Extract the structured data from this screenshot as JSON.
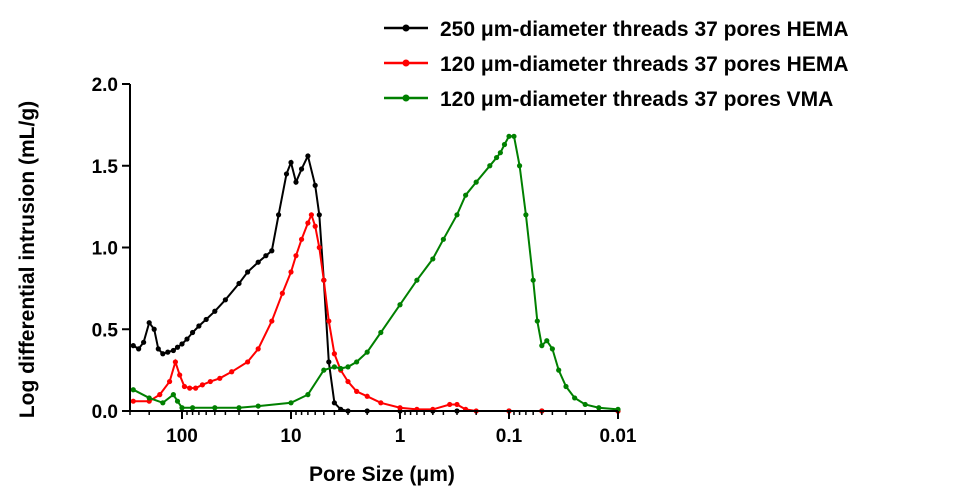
{
  "chart_data": {
    "type": "line",
    "xlabel": "Pore Size (μm)",
    "ylabel": "Log differential intrusion (mL/g)",
    "x_scale": "log",
    "x_reversed": true,
    "xlim": [
      300,
      0.01
    ],
    "ylim": [
      0,
      2.0
    ],
    "x_ticks": [
      100,
      10,
      1,
      0.1,
      0.01
    ],
    "x_tick_labels": [
      "100",
      "10",
      "1",
      "0.1",
      "0.01"
    ],
    "y_ticks": [
      0,
      0.5,
      1.0,
      1.5,
      2.0
    ],
    "y_tick_labels": [
      "0.0",
      "0.5",
      "1.0",
      "1.5",
      "2.0"
    ],
    "grid": false,
    "legend_position": "top-right",
    "series": [
      {
        "name": "250 μm-diameter threads 37 pores HEMA",
        "color": "#000000",
        "x": [
          280,
          250,
          225,
          200,
          180,
          165,
          150,
          135,
          120,
          110,
          100,
          90,
          80,
          70,
          60,
          50,
          40,
          30,
          25,
          20,
          17,
          15,
          13,
          11,
          10,
          9,
          8,
          7,
          6,
          5.5,
          5,
          4.5,
          4,
          3.5,
          3,
          2,
          1,
          0.5,
          0.3,
          0.1,
          0.05,
          0.01
        ],
        "values": [
          0.4,
          0.38,
          0.42,
          0.54,
          0.5,
          0.38,
          0.35,
          0.36,
          0.37,
          0.39,
          0.41,
          0.44,
          0.48,
          0.52,
          0.56,
          0.61,
          0.68,
          0.78,
          0.85,
          0.91,
          0.95,
          0.98,
          1.2,
          1.45,
          1.52,
          1.4,
          1.48,
          1.56,
          1.38,
          1.2,
          0.8,
          0.3,
          0.05,
          0.01,
          0.0,
          0.0,
          0.0,
          0.0,
          0.0,
          0.0,
          0.0,
          0.0
        ]
      },
      {
        "name": "120 μm-diameter threads 37 pores HEMA",
        "color": "#ff0000",
        "x": [
          280,
          200,
          160,
          130,
          115,
          105,
          95,
          85,
          75,
          65,
          55,
          45,
          35,
          25,
          20,
          15,
          12,
          10,
          9,
          8,
          7,
          6.5,
          6,
          5.5,
          5,
          4.5,
          4,
          3.5,
          3,
          2.5,
          2,
          1.5,
          1,
          0.7,
          0.5,
          0.35,
          0.3,
          0.25,
          0.2,
          0.1,
          0.05,
          0.01
        ],
        "values": [
          0.06,
          0.06,
          0.1,
          0.18,
          0.3,
          0.22,
          0.15,
          0.14,
          0.14,
          0.16,
          0.18,
          0.2,
          0.24,
          0.3,
          0.38,
          0.55,
          0.72,
          0.85,
          0.95,
          1.05,
          1.15,
          1.2,
          1.13,
          1.0,
          0.8,
          0.55,
          0.35,
          0.25,
          0.18,
          0.12,
          0.09,
          0.05,
          0.02,
          0.01,
          0.01,
          0.04,
          0.04,
          0.01,
          0.0,
          0.0,
          0.0,
          0.0
        ]
      },
      {
        "name": "120 μm-diameter threads 37 pores VMA",
        "color": "#008000",
        "x": [
          280,
          200,
          150,
          120,
          110,
          100,
          80,
          50,
          30,
          20,
          10,
          7,
          5,
          4,
          3.5,
          3,
          2.5,
          2,
          1.5,
          1,
          0.7,
          0.5,
          0.4,
          0.3,
          0.25,
          0.2,
          0.15,
          0.13,
          0.12,
          0.11,
          0.1,
          0.09,
          0.08,
          0.07,
          0.06,
          0.055,
          0.05,
          0.045,
          0.04,
          0.035,
          0.03,
          0.025,
          0.02,
          0.015,
          0.01
        ],
        "values": [
          0.13,
          0.08,
          0.05,
          0.1,
          0.06,
          0.02,
          0.02,
          0.02,
          0.02,
          0.03,
          0.05,
          0.1,
          0.25,
          0.27,
          0.26,
          0.27,
          0.3,
          0.36,
          0.48,
          0.65,
          0.8,
          0.93,
          1.05,
          1.2,
          1.32,
          1.4,
          1.5,
          1.55,
          1.58,
          1.63,
          1.68,
          1.68,
          1.5,
          1.2,
          0.8,
          0.55,
          0.4,
          0.43,
          0.38,
          0.25,
          0.15,
          0.08,
          0.04,
          0.02,
          0.01
        ]
      }
    ]
  }
}
